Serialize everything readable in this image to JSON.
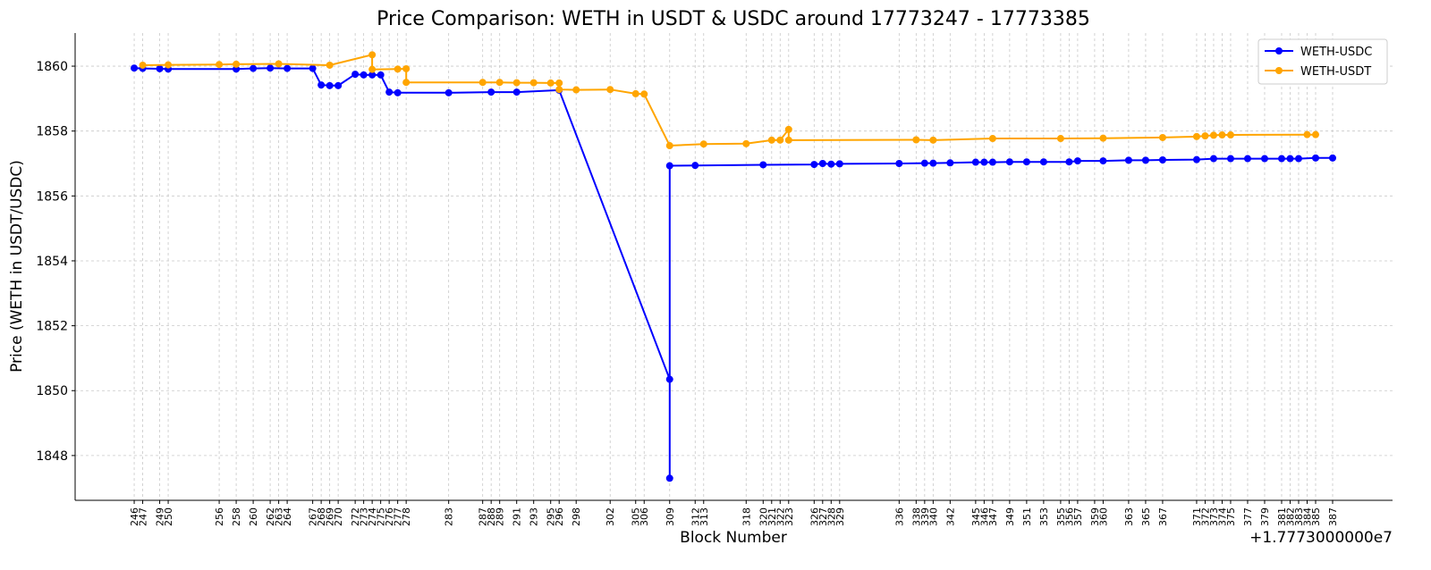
{
  "chart_data": {
    "type": "line",
    "title": "Price Comparison: WETH in USDT & USDC around 17773247 - 17773385",
    "xlabel": "Block Number",
    "ylabel": "Price (WETH in USDT/USDC)",
    "x_offset_label": "+1.7773000000e7",
    "xlim": [
      239.05,
      394.05
    ],
    "ylim": [
      1846.62,
      1861.02
    ],
    "yticks": [
      1848,
      1850,
      1852,
      1854,
      1856,
      1858,
      1860
    ],
    "xticks": [
      246,
      247,
      249,
      250,
      256,
      258,
      260,
      262,
      263,
      264,
      267,
      268,
      269,
      270,
      272,
      273,
      274,
      275,
      276,
      277,
      278,
      283,
      287,
      288,
      289,
      291,
      293,
      295,
      296,
      298,
      302,
      305,
      306,
      309,
      312,
      313,
      318,
      320,
      321,
      322,
      323,
      326,
      327,
      328,
      329,
      336,
      338,
      339,
      340,
      342,
      345,
      346,
      347,
      349,
      351,
      353,
      355,
      356,
      357,
      359,
      360,
      363,
      365,
      367,
      371,
      372,
      373,
      374,
      375,
      377,
      379,
      381,
      382,
      383,
      384,
      385,
      387
    ],
    "grid": true,
    "legend_position": "top-right",
    "series": [
      {
        "name": "WETH-USDC",
        "color": "#0000ff",
        "x": [
          246,
          247,
          249,
          250,
          258,
          260,
          262,
          264,
          267,
          268,
          269,
          270,
          272,
          273,
          274,
          275,
          276,
          277,
          283,
          288,
          291,
          296,
          309,
          309,
          309,
          312,
          320,
          326,
          327,
          328,
          329,
          336,
          339,
          340,
          342,
          345,
          346,
          347,
          349,
          351,
          353,
          356,
          357,
          360,
          363,
          365,
          367,
          371,
          373,
          375,
          377,
          379,
          381,
          382,
          383,
          385,
          387
        ],
        "y": [
          1859.94,
          1859.93,
          1859.92,
          1859.91,
          1859.91,
          1859.93,
          1859.94,
          1859.93,
          1859.93,
          1859.42,
          1859.4,
          1859.4,
          1859.75,
          1859.73,
          1859.73,
          1859.73,
          1859.2,
          1859.18,
          1859.18,
          1859.2,
          1859.2,
          1859.26,
          1850.35,
          1847.3,
          1856.93,
          1856.94,
          1856.96,
          1856.97,
          1857.0,
          1856.98,
          1856.99,
          1857.0,
          1857.01,
          1857.01,
          1857.02,
          1857.04,
          1857.04,
          1857.04,
          1857.05,
          1857.05,
          1857.05,
          1857.05,
          1857.08,
          1857.08,
          1857.1,
          1857.1,
          1857.11,
          1857.12,
          1857.15,
          1857.15,
          1857.15,
          1857.15,
          1857.15,
          1857.15,
          1857.15,
          1857.17,
          1857.17
        ]
      },
      {
        "name": "WETH-USDT",
        "color": "#ffa500",
        "x": [
          247,
          250,
          256,
          258,
          263,
          269,
          274,
          274,
          277,
          278,
          278,
          287,
          289,
          291,
          293,
          295,
          296,
          296,
          298,
          302,
          305,
          306,
          309,
          313,
          318,
          321,
          322,
          323,
          323,
          338,
          340,
          347,
          355,
          360,
          367,
          371,
          372,
          373,
          374,
          375,
          384,
          385
        ],
        "y": [
          1860.03,
          1860.04,
          1860.05,
          1860.06,
          1860.07,
          1860.03,
          1860.35,
          1859.9,
          1859.91,
          1859.92,
          1859.5,
          1859.5,
          1859.5,
          1859.49,
          1859.49,
          1859.48,
          1859.48,
          1859.28,
          1859.27,
          1859.28,
          1859.15,
          1859.14,
          1857.55,
          1857.6,
          1857.61,
          1857.72,
          1857.72,
          1858.05,
          1857.72,
          1857.73,
          1857.72,
          1857.77,
          1857.77,
          1857.78,
          1857.8,
          1857.83,
          1857.85,
          1857.87,
          1857.88,
          1857.88,
          1857.89,
          1857.89
        ]
      }
    ]
  }
}
